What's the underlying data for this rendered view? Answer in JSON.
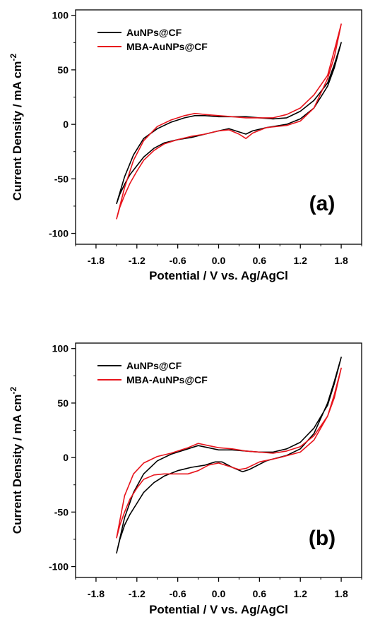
{
  "chart_data": [
    {
      "type": "line",
      "panel_label": "(a)",
      "xlabel": "Potential / V vs. Ag/AgCl",
      "ylabel_main": "Current Density / mA cm",
      "ylabel_sup": "-2",
      "xlim": [
        -2.1,
        2.1
      ],
      "ylim": [
        -110,
        105
      ],
      "xticks": [
        -1.8,
        -1.2,
        -0.6,
        0.0,
        0.6,
        1.2,
        1.8
      ],
      "xtick_labels": [
        "-1.8",
        "-1.2",
        "-0.6",
        "0.0",
        "0.6",
        "1.2",
        "1.8"
      ],
      "yticks": [
        -100,
        -50,
        0,
        50,
        100
      ],
      "ytick_labels": [
        "-100",
        "-50",
        "0",
        "50",
        "100"
      ],
      "legend": "top-left",
      "series": [
        {
          "name": "AuNPs@CF",
          "color": "#000000",
          "x": [
            -1.5,
            -1.45,
            -1.38,
            -1.3,
            -1.2,
            -1.1,
            -0.95,
            -0.8,
            -0.6,
            -0.4,
            -0.2,
            0.0,
            0.15,
            0.3,
            0.4,
            0.5,
            0.7,
            1.0,
            1.2,
            1.4,
            1.6,
            1.7,
            1.8,
            1.8,
            1.7,
            1.6,
            1.4,
            1.2,
            1.0,
            0.8,
            0.6,
            0.4,
            0.2,
            0.0,
            -0.2,
            -0.35,
            -0.5,
            -0.7,
            -0.9,
            -1.1,
            -1.25,
            -1.38,
            -1.5
          ],
          "y": [
            -73,
            -64,
            -55,
            -46,
            -38,
            -30,
            -22,
            -17,
            -14,
            -12,
            -9,
            -6,
            -4,
            -7,
            -9,
            -6,
            -3,
            0,
            5,
            15,
            35,
            52,
            75,
            75,
            55,
            38,
            22,
            12,
            6,
            5,
            6,
            7,
            7,
            7,
            8,
            8,
            6,
            2,
            -4,
            -13,
            -28,
            -48,
            -73
          ]
        },
        {
          "name": "MBA-AuNPs@CF",
          "color": "#e8141c",
          "x": [
            -1.5,
            -1.45,
            -1.38,
            -1.3,
            -1.2,
            -1.1,
            -0.95,
            -0.8,
            -0.6,
            -0.4,
            -0.2,
            0.0,
            0.15,
            0.3,
            0.4,
            0.5,
            0.7,
            1.0,
            1.2,
            1.4,
            1.6,
            1.7,
            1.8,
            1.8,
            1.7,
            1.6,
            1.4,
            1.2,
            1.0,
            0.8,
            0.6,
            0.4,
            0.2,
            0.0,
            -0.2,
            -0.35,
            -0.5,
            -0.7,
            -0.9,
            -1.1,
            -1.25,
            -1.38,
            -1.5
          ],
          "y": [
            -87,
            -76,
            -65,
            -54,
            -43,
            -33,
            -24,
            -18,
            -14,
            -11,
            -9,
            -6,
            -5,
            -9,
            -13,
            -8,
            -3,
            -1,
            3,
            15,
            42,
            62,
            92,
            92,
            68,
            45,
            27,
            15,
            9,
            6,
            6,
            6,
            7,
            8,
            9,
            10,
            8,
            4,
            -2,
            -15,
            -33,
            -58,
            -87
          ]
        }
      ]
    },
    {
      "type": "line",
      "panel_label": "(b)",
      "xlabel": "Potential / V vs. Ag/AgCl",
      "ylabel_main": "Current Density / mA cm",
      "ylabel_sup": "-2",
      "xlim": [
        -2.1,
        2.1
      ],
      "ylim": [
        -110,
        105
      ],
      "xticks": [
        -1.8,
        -1.2,
        -0.6,
        0.0,
        0.6,
        1.2,
        1.8
      ],
      "xtick_labels": [
        "-1.8",
        "-1.2",
        "-0.6",
        "0.0",
        "0.6",
        "1.2",
        "1.8"
      ],
      "yticks": [
        -100,
        -50,
        0,
        50,
        100
      ],
      "ytick_labels": [
        "-100",
        "-50",
        "0",
        "50",
        "100"
      ],
      "legend": "top-left",
      "series": [
        {
          "name": "AuNPs@CF",
          "color": "#000000",
          "x": [
            -1.5,
            -1.45,
            -1.38,
            -1.3,
            -1.2,
            -1.1,
            -0.95,
            -0.8,
            -0.6,
            -0.4,
            -0.2,
            -0.05,
            0.05,
            0.2,
            0.35,
            0.45,
            0.7,
            1.0,
            1.2,
            1.4,
            1.6,
            1.7,
            1.8,
            1.8,
            1.7,
            1.6,
            1.4,
            1.2,
            1.0,
            0.8,
            0.6,
            0.4,
            0.2,
            0.0,
            -0.15,
            -0.3,
            -0.45,
            -0.7,
            -0.9,
            -1.1,
            -1.25,
            -1.38,
            -1.5
          ],
          "y": [
            -88,
            -75,
            -62,
            -52,
            -42,
            -32,
            -23,
            -17,
            -12,
            -9,
            -7,
            -4,
            -4,
            -9,
            -13,
            -11,
            -3,
            2,
            8,
            22,
            50,
            70,
            92,
            92,
            68,
            48,
            27,
            14,
            8,
            5,
            5,
            6,
            7,
            7,
            9,
            11,
            8,
            3,
            -3,
            -15,
            -32,
            -55,
            -88
          ]
        },
        {
          "name": "MBA-AuNPs@CF",
          "color": "#e8141c",
          "x": [
            -1.5,
            -1.45,
            -1.38,
            -1.3,
            -1.2,
            -1.1,
            -0.95,
            -0.8,
            -0.6,
            -0.45,
            -0.3,
            -0.15,
            0.0,
            0.15,
            0.3,
            0.4,
            0.6,
            0.9,
            1.2,
            1.4,
            1.6,
            1.7,
            1.8,
            1.8,
            1.7,
            1.6,
            1.4,
            1.2,
            1.0,
            0.8,
            0.6,
            0.4,
            0.2,
            0.0,
            -0.15,
            -0.3,
            -0.45,
            -0.7,
            -0.9,
            -1.1,
            -1.25,
            -1.38,
            -1.5
          ],
          "y": [
            -74,
            -62,
            -50,
            -38,
            -28,
            -20,
            -16,
            -15,
            -15,
            -15,
            -12,
            -7,
            -5,
            -8,
            -11,
            -10,
            -4,
            0,
            5,
            16,
            38,
            55,
            82,
            82,
            58,
            38,
            20,
            10,
            6,
            4,
            5,
            6,
            8,
            9,
            11,
            13,
            9,
            4,
            1,
            -5,
            -15,
            -35,
            -74
          ]
        }
      ]
    }
  ]
}
